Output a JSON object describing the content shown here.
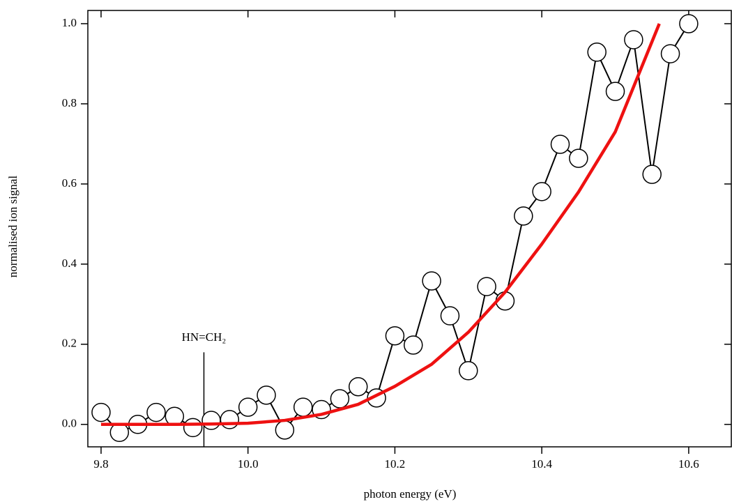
{
  "chart_data": {
    "type": "line",
    "x_label": "photon energy (eV)",
    "y_label": "normalised ion signal",
    "xlim": [
      9.782,
      10.658
    ],
    "ylim": [
      -0.056,
      1.033
    ],
    "xticks": [
      9.8,
      {
        "value": 10,
        "label": "10.0"
      },
      10.2,
      10.4,
      10.6
    ],
    "yticks": [
      {
        "value": 0,
        "label": "0.0"
      },
      0.2,
      0.4,
      0.6,
      0.8,
      {
        "value": 1,
        "label": "1.0"
      }
    ],
    "series": [
      {
        "color": "#000000",
        "markers": true,
        "x": [
          9.8,
          9.825,
          9.85,
          9.875,
          9.9,
          9.925,
          9.95,
          9.975,
          10.0,
          10.025,
          10.05,
          10.075,
          10.1,
          10.125,
          10.15,
          10.175,
          10.2,
          10.225,
          10.25,
          10.275,
          10.3,
          10.325,
          10.35,
          10.375,
          10.4,
          10.425,
          10.45,
          10.475,
          10.5,
          10.525,
          10.55,
          10.575,
          10.6
        ],
        "values": [
          0.03,
          -0.02,
          0.0,
          0.03,
          0.02,
          -0.008,
          0.01,
          0.012,
          0.043,
          0.073,
          -0.014,
          0.043,
          0.037,
          0.064,
          0.094,
          0.066,
          0.221,
          0.198,
          0.358,
          0.271,
          0.134,
          0.344,
          0.308,
          0.52,
          0.581,
          0.699,
          0.664,
          0.929,
          0.831,
          0.96,
          0.624,
          0.925,
          1.0
        ]
      },
      {
        "color": "#ee1111",
        "markers": false,
        "x": [
          9.8,
          9.9,
          9.95,
          10.0,
          10.05,
          10.1,
          10.15,
          10.2,
          10.25,
          10.3,
          10.35,
          10.4,
          10.45,
          10.5,
          10.56
        ],
        "values": [
          0,
          0,
          0.001,
          0.003,
          0.01,
          0.025,
          0.05,
          0.095,
          0.15,
          0.23,
          0.33,
          0.45,
          0.58,
          0.73,
          1.0
        ]
      }
    ],
    "annotations": [
      {
        "text": "HN=CH₂",
        "x": 9.94,
        "y": 0.18
      }
    ]
  }
}
